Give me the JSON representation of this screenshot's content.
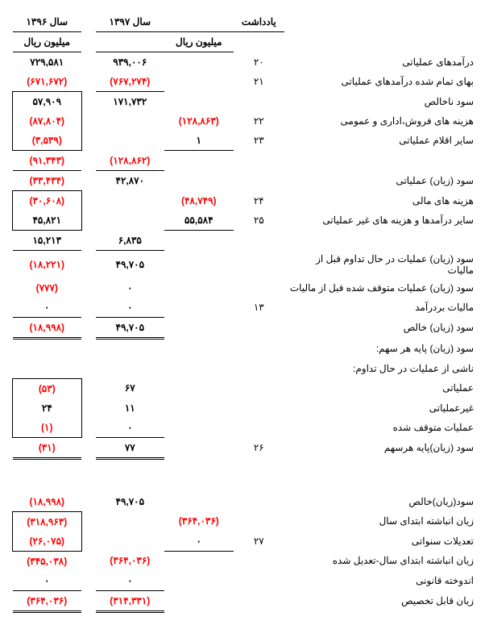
{
  "headers": {
    "note": "یادداشت",
    "y1397": "سال ۱۳۹۷",
    "y1396": "سال ۱۳۹۶",
    "unit": "میلیون ریال"
  },
  "rows": [
    {
      "label": "درآمدهای عملیاتی",
      "note": "۲۰",
      "c1397a": "۹۳۹,۰۰۶",
      "c1396a": "۷۲۹,۵۸۱"
    },
    {
      "label": "بهای تمام شده درآمدهای عملیاتی",
      "note": "۲۱",
      "c1397a": "(۷۶۷,۲۷۴)",
      "c1397a_neg": true,
      "c1396a": "(۶۷۱,۶۷۲)",
      "c1396a_neg": true,
      "uline1397a": true,
      "uline1396a": true
    },
    {
      "label": "سود ناخالص",
      "c1397a": "۱۷۱,۷۳۲",
      "c1396a": "۵۷,۹۰۹",
      "uline1396a": true,
      "box1396": "top"
    },
    {
      "label": "هزینه های فروش،اداری و عمومی",
      "note": "۲۲",
      "c1397b": "(۱۲۸,۸۶۳)",
      "c1397b_neg": true,
      "c1396a": "(۸۷,۸۰۴)",
      "c1396a_neg": true,
      "box1396": "mid"
    },
    {
      "label": "سایر اقلام عملیاتی",
      "note": "۲۳",
      "c1397b": "۱",
      "c1396a": "(۳,۵۳۹)",
      "c1396a_neg": true,
      "uline1397b": true,
      "box1396": "bot"
    },
    {
      "label": "",
      "c1397a": "(۱۲۸,۸۶۲)",
      "c1397a_neg": true,
      "c1396a": "(۹۱,۳۴۳)",
      "c1396a_neg": true,
      "uline1397a": true,
      "uline1396a": true
    },
    {
      "label": "سود (زیان) عملیاتی",
      "c1397a": "۴۲,۸۷۰",
      "c1396a": "(۳۳,۴۳۴)",
      "c1396a_neg": true,
      "uline1396a_below": true,
      "box1396_below": "top"
    },
    {
      "label": "هزینه های مالی",
      "note": "۲۴",
      "c1397b": "(۴۸,۷۴۹)",
      "c1397b_neg": true,
      "c1396a": "(۳۰,۶۰۸)",
      "c1396a_neg": true,
      "box1396": "top"
    },
    {
      "label": "سایر درآمدها و هزینه های غیر عملیاتی",
      "note": "۲۵",
      "c1397b": "۵۵,۵۸۴",
      "c1396a": "۴۵,۸۲۱",
      "uline1397b": true,
      "box1396": "bot"
    },
    {
      "label": "",
      "c1397a": "۶,۸۳۵",
      "c1396a": "۱۵,۲۱۳",
      "uline1397a": true,
      "uline1396a": true
    },
    {
      "label": "سود (زیان) عملیات در حال تداوم قبل از مالیات",
      "c1397a": "۴۹,۷۰۵",
      "c1396a": "(۱۸,۲۲۱)",
      "c1396a_neg": true
    },
    {
      "label": "سود (زیان) عملیات متوقف شده قبل از مالیات",
      "c1397a": "۰",
      "c1396a": "(۷۷۷)",
      "c1396a_neg": true
    },
    {
      "label": "مالیات بردرآمد",
      "note": "۱۳",
      "c1397a": "۰",
      "c1396a": "۰",
      "uline1397a": true,
      "uline1396a": true
    },
    {
      "label": "سود (زیان) خالص",
      "c1397a": "۴۹,۷۰۵",
      "c1396a": "(۱۸,۹۹۸)",
      "c1396a_neg": true,
      "udbl1397a": true,
      "udbl1396a": true
    },
    {
      "label": "سود (زیان) پایه هر سهم:"
    },
    {
      "label": "ناشی از عملیات در حال تداوم:"
    },
    {
      "label": "عملیاتی",
      "c1397a": "۶۷",
      "c1396a": "(۵۳)",
      "c1396a_neg": true,
      "box1396": "top"
    },
    {
      "label": "غیرعملیاتی",
      "c1397a": "۱۱",
      "c1396a": "۲۴",
      "box1396": "mid"
    },
    {
      "label": "عملیات متوقف شده",
      "c1397a": "۰",
      "c1396a": "(۱)",
      "c1396a_neg": true,
      "uline1397a": true,
      "box1396": "bot"
    },
    {
      "label": "سود (زیان)پایه هرسهم",
      "note": "۲۶",
      "c1397a": "۷۷",
      "c1396a": "(۳۱)",
      "c1396a_neg": true,
      "udbl1397a": true,
      "udbl1396a": true
    },
    {
      "label": "",
      "spacer": true
    },
    {
      "label": "",
      "spacer": true
    },
    {
      "label": "سود(زیان)خالص",
      "c1397a": "۴۹,۷۰۵",
      "c1396a": "(۱۸,۹۹۸)",
      "c1396a_neg": true,
      "box1396_below": "top"
    },
    {
      "label": "زیان انباشته ابتدای سال",
      "c1397b": "(۳۶۴,۰۳۶)",
      "c1397b_neg": true,
      "c1396a": "(۳۱۸,۹۶۳)",
      "c1396a_neg": true,
      "box1396": "top"
    },
    {
      "label": "تعدیلات سنواتی",
      "note": "۲۷",
      "c1397b": "۰",
      "c1396a": "(۲۶,۰۷۵)",
      "c1396a_neg": true,
      "uline1397b": true,
      "box1396": "bot"
    },
    {
      "label": "زیان انباشته ابتدای سال-تعدیل شده",
      "c1397a": "(۳۶۴,۰۳۶)",
      "c1397a_neg": true,
      "c1396a": "(۳۴۵,۰۳۸)",
      "c1396a_neg": true
    },
    {
      "label": "اندوخته قانونی",
      "c1397a": "۰",
      "c1396a": "۰",
      "uline1397a": true,
      "uline1396a": true
    },
    {
      "label": "زیان قابل تخصیص",
      "c1397a": "(۳۱۴,۳۳۱)",
      "c1397a_neg": true,
      "c1396a": "(۳۶۴,۰۳۶)",
      "c1396a_neg": true,
      "udbl1397a": true,
      "udbl1396a": true
    }
  ]
}
